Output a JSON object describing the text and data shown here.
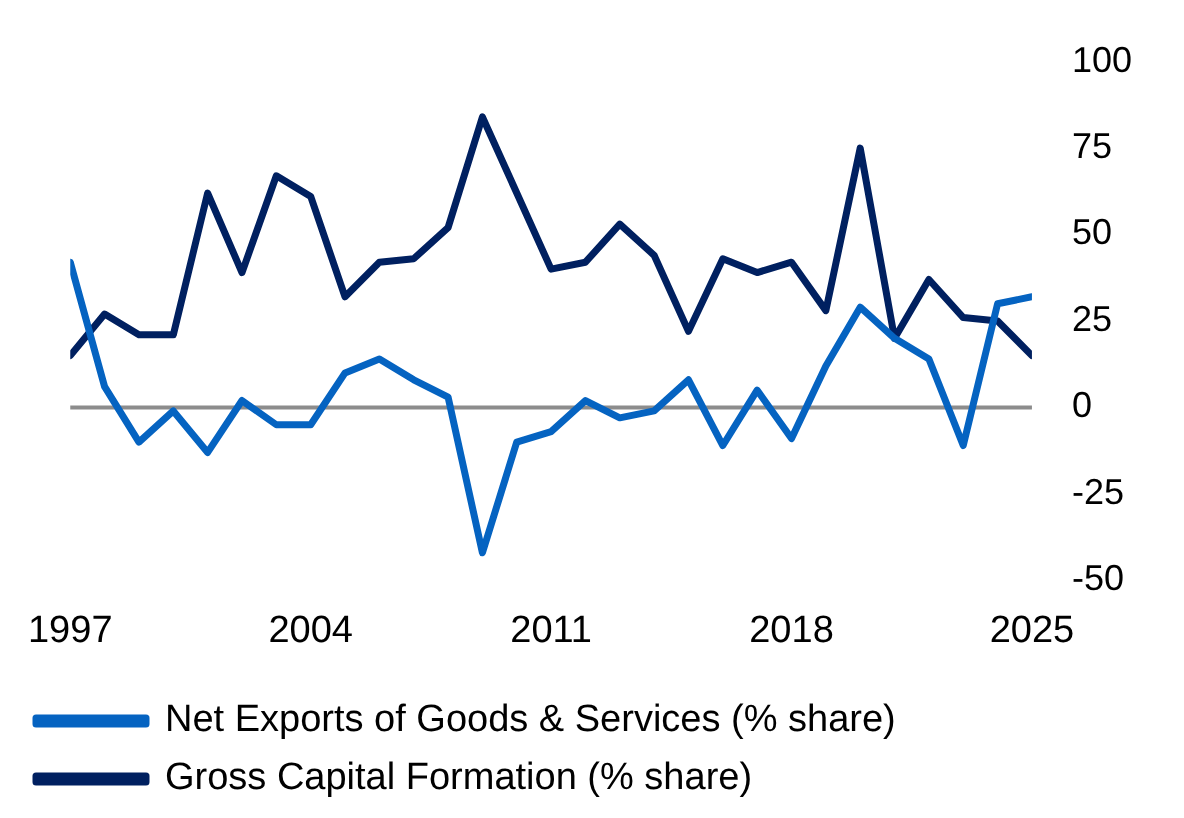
{
  "chart_data": {
    "type": "line",
    "x": [
      1997,
      1998,
      1999,
      2000,
      2001,
      2002,
      2003,
      2004,
      2005,
      2006,
      2007,
      2008,
      2009,
      2010,
      2011,
      2012,
      2013,
      2014,
      2015,
      2016,
      2017,
      2018,
      2019,
      2020,
      2021,
      2022,
      2023,
      2024,
      2025
    ],
    "series": [
      {
        "name": "Net Exports of Goods & Services (% share)",
        "color": "#0563c1",
        "values": [
          42,
          6,
          -10,
          -1,
          -13,
          2,
          -5,
          -5,
          10,
          14,
          8,
          3,
          -42,
          -10,
          -7,
          2,
          -3,
          -1,
          8,
          -11,
          5,
          -9,
          12,
          29,
          20,
          14,
          -11,
          30,
          32
        ]
      },
      {
        "name": "Gross Capital Formation (% share)",
        "color": "#002060",
        "values": [
          15,
          27,
          21,
          21,
          62,
          39,
          67,
          61,
          32,
          42,
          43,
          52,
          84,
          62,
          40,
          42,
          53,
          44,
          22,
          43,
          39,
          42,
          28,
          75,
          20,
          37,
          26,
          25,
          15
        ]
      }
    ],
    "xlim": [
      1997,
      2025
    ],
    "xticks": [
      1997,
      2004,
      2011,
      2018,
      2025
    ],
    "ylim": [
      -50,
      100
    ],
    "yticks": [
      -50,
      -25,
      0,
      25,
      50,
      75,
      100
    ],
    "ref_lines": [
      {
        "axis": "y",
        "value": 0,
        "color": "#8c8c8c"
      }
    ],
    "grid": false,
    "legend": "bottom",
    "marker": "none",
    "line_style": "solid"
  }
}
